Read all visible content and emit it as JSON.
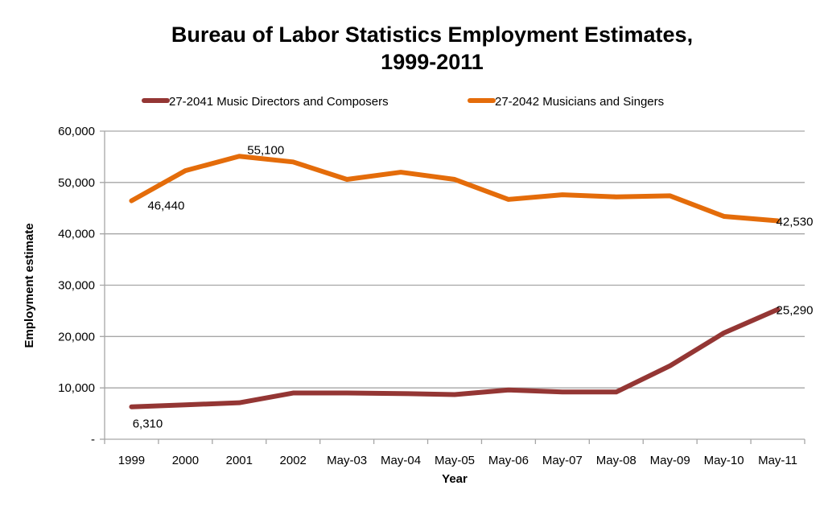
{
  "chart_data": {
    "type": "line",
    "title_lines": [
      "Bureau of Labor Statistics Employment Estimates,",
      "1999-2011"
    ],
    "xlabel": "Year",
    "ylabel": "Employment estimate",
    "categories": [
      "1999",
      "2000",
      "2001",
      "2002",
      "May-03",
      "May-04",
      "May-05",
      "May-06",
      "May-07",
      "May-08",
      "May-09",
      "May-10",
      "May-11"
    ],
    "ylim": [
      0,
      60000
    ],
    "yticks": [
      0,
      10000,
      20000,
      30000,
      40000,
      50000,
      60000
    ],
    "ytick_labels": [
      "-",
      "10,000",
      "20,000",
      "30,000",
      "40,000",
      "50,000",
      "60,000"
    ],
    "grid": true,
    "legend_position": "top",
    "series": [
      {
        "name": "27-2041 Music Directors and Composers",
        "color": "#943634",
        "values": [
          6310,
          6700,
          7100,
          9000,
          9000,
          8900,
          8700,
          9600,
          9200,
          9200,
          14300,
          20700,
          25290
        ],
        "labels": [
          {
            "index": 0,
            "text": "6,310",
            "position": "below"
          },
          {
            "index": 12,
            "text": "25,290",
            "position": "right"
          }
        ]
      },
      {
        "name": "27-2042 Musicians and Singers",
        "color": "#e46c0a",
        "values": [
          46440,
          52300,
          55100,
          54000,
          50600,
          52000,
          50600,
          46700,
          47600,
          47200,
          47400,
          43400,
          42530
        ],
        "labels": [
          {
            "index": 0,
            "text": "46,440",
            "position": "below-right"
          },
          {
            "index": 2,
            "text": "55,100",
            "position": "above-right"
          },
          {
            "index": 12,
            "text": "42,530",
            "position": "right"
          }
        ]
      }
    ]
  }
}
